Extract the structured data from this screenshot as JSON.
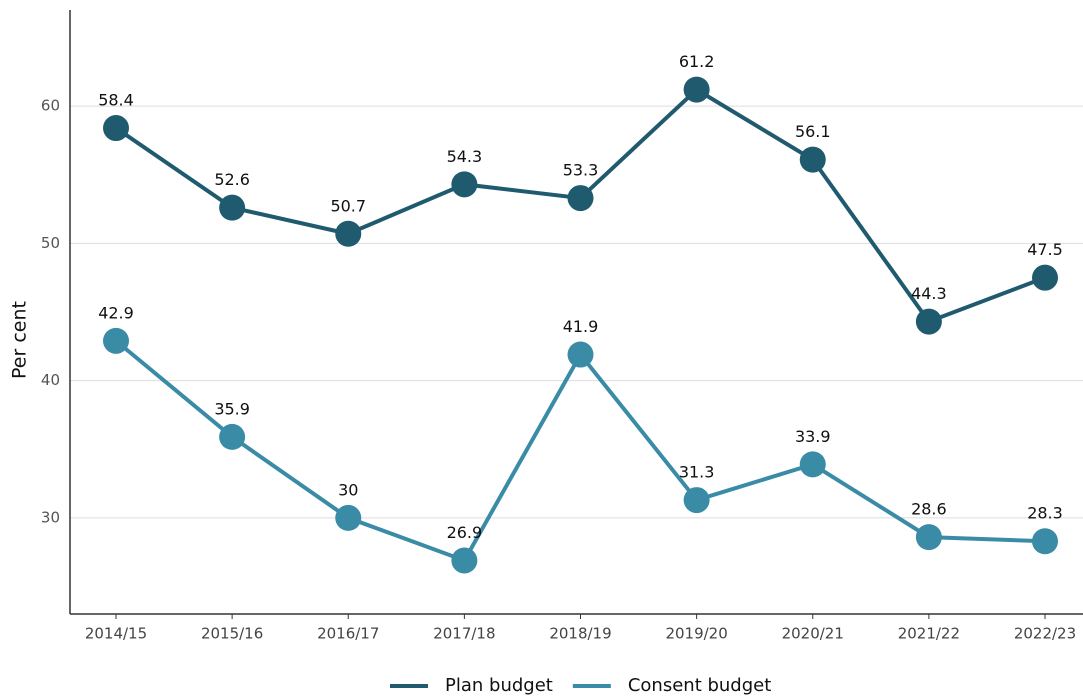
{
  "chart_data": {
    "type": "line",
    "y_label": "Per cent",
    "categories": [
      "2014/15",
      "2015/16",
      "2016/17",
      "2017/18",
      "2018/19",
      "2019/20",
      "2020/21",
      "2021/22",
      "2022/23"
    ],
    "series": [
      {
        "name": "Plan budget",
        "color": "#1f5a6e",
        "values": [
          58.4,
          52.6,
          50.7,
          54.3,
          53.3,
          61.2,
          56.1,
          44.3,
          47.5
        ]
      },
      {
        "name": "Consent budget",
        "color": "#3a8ba6",
        "values": [
          42.9,
          35.9,
          30,
          26.9,
          41.9,
          31.3,
          33.9,
          28.6,
          28.3
        ]
      }
    ],
    "ylim": [
      23,
      67
    ],
    "yticks": [
      30,
      40,
      50,
      60
    ],
    "grid": true,
    "legend": "bottom"
  }
}
